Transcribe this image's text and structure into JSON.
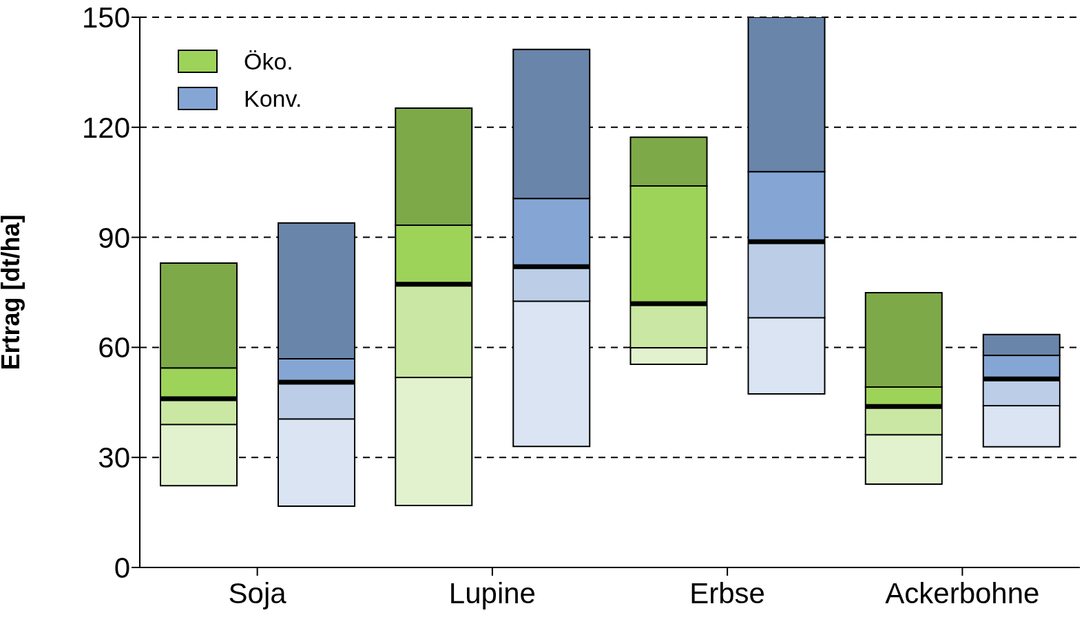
{
  "chart_data": {
    "type": "box",
    "ylabel": "Ertrag [dt/ha]",
    "categories": [
      "Soja",
      "Lupine",
      "Erbse",
      "Ackerbohne"
    ],
    "series": [
      {
        "name": "Öko.",
        "color": "#9ed35a",
        "boxes": [
          {
            "low": 22.3,
            "q1": 39,
            "median": 46,
            "q3": 54.4,
            "high": 83
          },
          {
            "low": 16.9,
            "q1": 51.8,
            "median": 77.2,
            "q3": 93.3,
            "high": 125.2
          },
          {
            "low": 55.4,
            "q1": 59.9,
            "median": 71.9,
            "q3": 104,
            "high": 117.3
          },
          {
            "low": 22.7,
            "q1": 36.2,
            "median": 43.9,
            "q3": 49.2,
            "high": 74.9
          }
        ]
      },
      {
        "name": "Konv.",
        "color": "#85a6d4",
        "boxes": [
          {
            "low": 16.7,
            "q1": 40.5,
            "median": 50.5,
            "q3": 56.9,
            "high": 93.9
          },
          {
            "low": 33,
            "q1": 72.6,
            "median": 82,
            "q3": 100.6,
            "high": 141.2
          },
          {
            "low": 47.3,
            "q1": 68.1,
            "median": 88.8,
            "q3": 107.9,
            "high": 150
          },
          {
            "low": 32.9,
            "q1": 44.1,
            "median": 51.4,
            "q3": 57.8,
            "high": 63.5
          }
        ]
      }
    ],
    "ylim": [
      0,
      150
    ],
    "yticks": [
      0,
      30,
      60,
      90,
      120,
      150
    ],
    "grid": "y",
    "legend": "top left"
  }
}
